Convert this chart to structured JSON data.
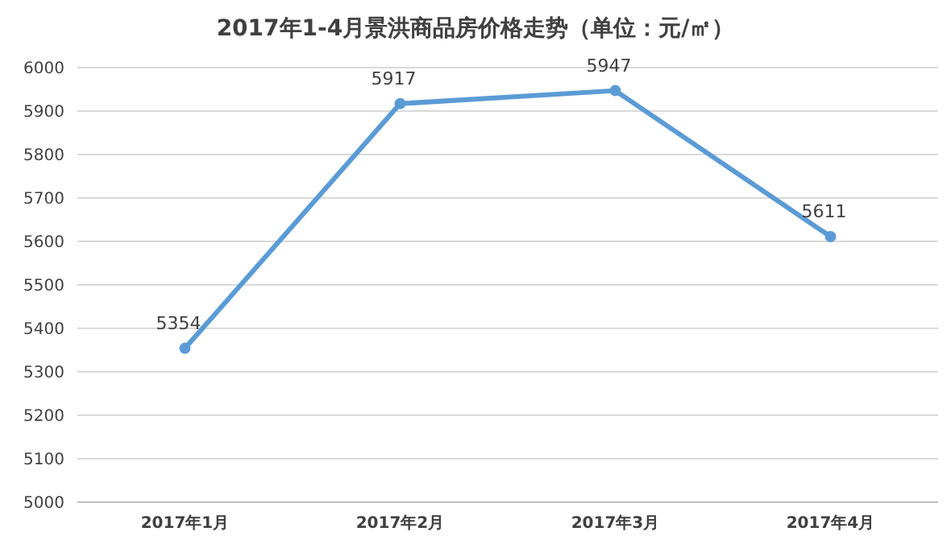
{
  "chart_data": {
    "type": "line",
    "title": "2017年1-4月景洪商品房价格走势（单位：元/㎡）",
    "categories": [
      "2017年1月",
      "2017年2月",
      "2017年3月",
      "2017年4月"
    ],
    "series": [
      {
        "color": "#5b9bd5",
        "values": [
          5354,
          5917,
          5947,
          5611
        ]
      }
    ],
    "ylim": [
      5000,
      6000
    ],
    "yticks": [
      5000,
      5100,
      5200,
      5300,
      5400,
      5500,
      5600,
      5700,
      5800,
      5900,
      6000
    ],
    "grid": "y",
    "marker": "circle",
    "line_style": "solid",
    "data_labels": true
  }
}
